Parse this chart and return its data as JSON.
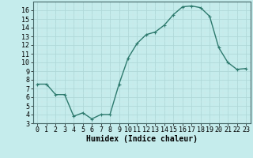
{
  "x": [
    0,
    1,
    2,
    3,
    4,
    5,
    6,
    7,
    8,
    9,
    10,
    11,
    12,
    13,
    14,
    15,
    16,
    17,
    18,
    19,
    20,
    21,
    22,
    23
  ],
  "y": [
    7.5,
    7.5,
    6.3,
    6.3,
    3.8,
    4.2,
    3.5,
    4.0,
    4.0,
    7.5,
    10.5,
    12.2,
    13.2,
    13.5,
    14.3,
    15.5,
    16.4,
    16.5,
    16.3,
    15.3,
    11.7,
    10.0,
    9.2,
    9.3
  ],
  "line_color": "#2e7a6e",
  "marker": "+",
  "marker_size": 3,
  "bg_color": "#c5ecec",
  "grid_color": "#b0d8d8",
  "grid_minor_color": "#cde8e8",
  "xlabel": "Humidex (Indice chaleur)",
  "xlabel_fontsize": 7,
  "tick_fontsize": 6,
  "xlim": [
    -0.5,
    23.5
  ],
  "ylim": [
    3,
    17
  ],
  "yticks": [
    3,
    4,
    5,
    6,
    7,
    8,
    9,
    10,
    11,
    12,
    13,
    14,
    15,
    16
  ],
  "xticks": [
    0,
    1,
    2,
    3,
    4,
    5,
    6,
    7,
    8,
    9,
    10,
    11,
    12,
    13,
    14,
    15,
    16,
    17,
    18,
    19,
    20,
    21,
    22,
    23
  ]
}
